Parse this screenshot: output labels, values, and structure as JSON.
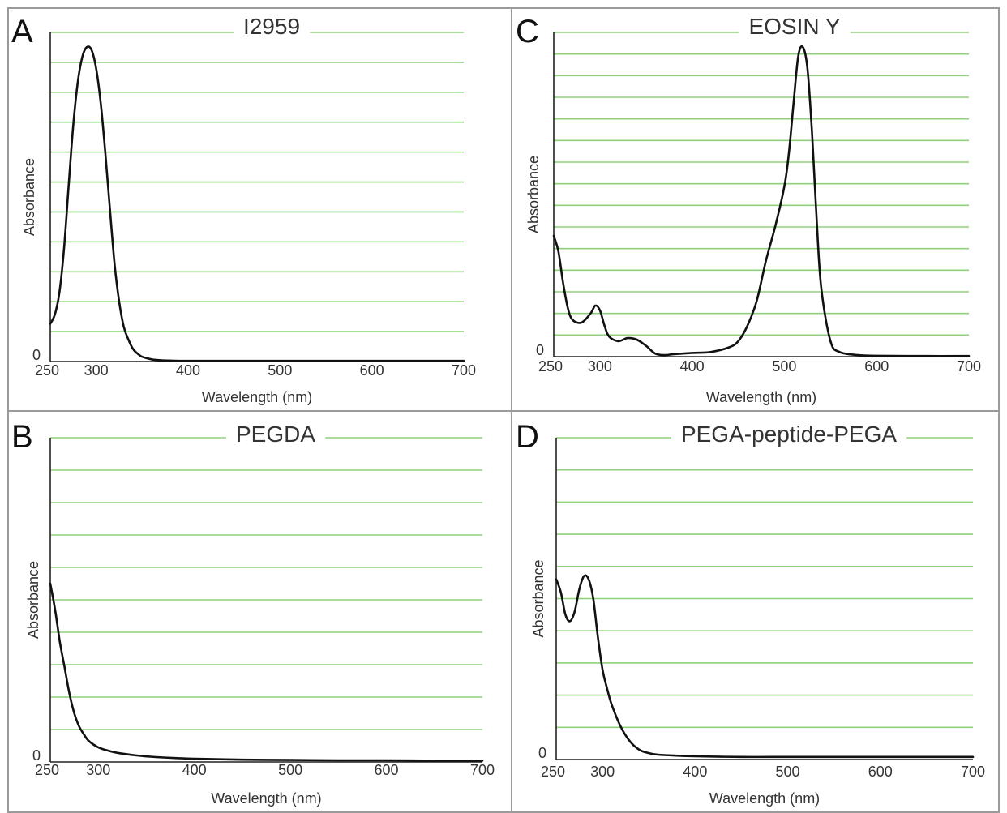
{
  "chart_data": [
    {
      "panel": "A",
      "type": "line",
      "title": "I2959",
      "xlabel": "Wavelength (nm)",
      "ylabel": "Absorbance",
      "xlim": [
        250,
        700
      ],
      "ylim": [
        0,
        1.0
      ],
      "x_ticks": [
        300,
        400,
        500,
        600,
        700
      ],
      "x_min_label": "250",
      "y_min_label": "0",
      "grid": true,
      "series": [
        {
          "x": [
            250,
            255,
            260,
            265,
            270,
            275,
            280,
            285,
            290,
            295,
            300,
            305,
            310,
            315,
            320,
            325,
            330,
            335,
            340,
            345,
            350,
            360,
            370,
            380,
            400,
            450,
            500,
            550,
            600,
            650,
            700
          ],
          "y": [
            0.12,
            0.15,
            0.22,
            0.36,
            0.56,
            0.75,
            0.89,
            0.97,
            1.0,
            0.99,
            0.93,
            0.82,
            0.66,
            0.48,
            0.31,
            0.19,
            0.11,
            0.07,
            0.04,
            0.025,
            0.015,
            0.007,
            0.004,
            0.003,
            0.002,
            0.002,
            0.002,
            0.002,
            0.002,
            0.002,
            0.002
          ]
        }
      ]
    },
    {
      "panel": "C",
      "type": "line",
      "title": "EOSIN Y",
      "xlabel": "Wavelength (nm)",
      "ylabel": "Absorbance",
      "xlim": [
        250,
        700
      ],
      "ylim": [
        0,
        1.0
      ],
      "x_ticks": [
        300,
        400,
        500,
        600,
        700
      ],
      "x_min_label": "250",
      "y_min_label": "0",
      "grid": true,
      "series": [
        {
          "x": [
            250,
            255,
            260,
            265,
            270,
            280,
            290,
            295,
            300,
            305,
            310,
            320,
            330,
            340,
            350,
            360,
            370,
            380,
            400,
            420,
            440,
            450,
            460,
            470,
            480,
            490,
            500,
            505,
            510,
            515,
            520,
            525,
            530,
            535,
            540,
            550,
            560,
            580,
            600,
            650,
            700
          ],
          "y": [
            0.39,
            0.34,
            0.24,
            0.16,
            0.12,
            0.11,
            0.14,
            0.165,
            0.15,
            0.1,
            0.065,
            0.05,
            0.06,
            0.055,
            0.035,
            0.01,
            0.005,
            0.008,
            0.012,
            0.015,
            0.03,
            0.05,
            0.1,
            0.18,
            0.31,
            0.42,
            0.55,
            0.66,
            0.82,
            0.97,
            1.0,
            0.93,
            0.72,
            0.44,
            0.22,
            0.05,
            0.015,
            0.005,
            0.003,
            0.002,
            0.002
          ]
        }
      ]
    },
    {
      "panel": "B",
      "type": "line",
      "title": "PEGDA",
      "xlabel": "Wavelength (nm)",
      "ylabel": "Absorbance",
      "xlim": [
        250,
        700
      ],
      "ylim": [
        0,
        1.0
      ],
      "x_ticks": [
        300,
        400,
        500,
        600,
        700
      ],
      "x_min_label": "250",
      "y_min_label": "0",
      "grid": true,
      "series": [
        {
          "x": [
            250,
            255,
            260,
            265,
            270,
            275,
            280,
            285,
            290,
            300,
            310,
            320,
            340,
            360,
            380,
            400,
            450,
            500,
            550,
            600,
            650,
            700
          ],
          "y": [
            0.55,
            0.47,
            0.37,
            0.29,
            0.21,
            0.15,
            0.11,
            0.085,
            0.065,
            0.045,
            0.035,
            0.028,
            0.02,
            0.015,
            0.012,
            0.01,
            0.007,
            0.006,
            0.005,
            0.005,
            0.004,
            0.004
          ]
        }
      ]
    },
    {
      "panel": "D",
      "type": "line",
      "title": "PEGA-peptide-PEGA",
      "xlabel": "Wavelength (nm)",
      "ylabel": "Absorbance",
      "xlim": [
        250,
        700
      ],
      "ylim": [
        0,
        1.0
      ],
      "x_ticks": [
        300,
        400,
        500,
        600,
        700
      ],
      "x_min_label": "250",
      "y_min_label": "0",
      "grid": true,
      "series": [
        {
          "x": [
            250,
            255,
            260,
            265,
            270,
            275,
            280,
            285,
            290,
            295,
            300,
            305,
            310,
            320,
            330,
            340,
            350,
            360,
            380,
            400,
            450,
            500,
            550,
            600,
            650,
            700
          ],
          "y": [
            0.56,
            0.52,
            0.45,
            0.43,
            0.46,
            0.53,
            0.57,
            0.56,
            0.5,
            0.38,
            0.28,
            0.22,
            0.17,
            0.1,
            0.055,
            0.03,
            0.02,
            0.015,
            0.012,
            0.01,
            0.008,
            0.008,
            0.008,
            0.008,
            0.008,
            0.008
          ]
        }
      ]
    }
  ]
}
